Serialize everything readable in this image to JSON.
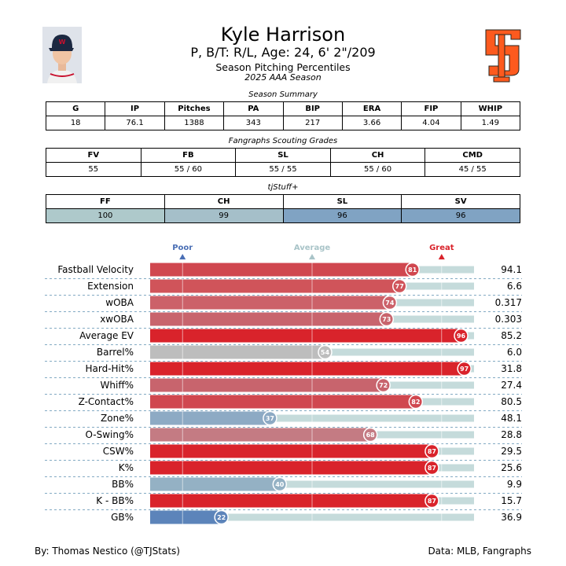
{
  "header": {
    "name": "Kyle Harrison",
    "info": "P, B/T: R/L, Age: 24, 6' 2\"/209",
    "subtitle": "Season Pitching Percentiles",
    "season": "2025 AAA Season"
  },
  "season_summary": {
    "caption": "Season Summary",
    "columns": [
      "G",
      "IP",
      "Pitches",
      "PA",
      "BIP",
      "ERA",
      "FIP",
      "WHIP"
    ],
    "values": [
      "18",
      "76.1",
      "1388",
      "343",
      "217",
      "3.66",
      "4.04",
      "1.49"
    ]
  },
  "fangraphs": {
    "caption": "Fangraphs Scouting Grades",
    "columns": [
      "FV",
      "FB",
      "SL",
      "CH",
      "CMD"
    ],
    "values": [
      "55",
      "55 / 60",
      "55 / 55",
      "55 / 60",
      "45 / 55"
    ]
  },
  "tjstuff": {
    "caption": "tjStuff+",
    "columns": [
      "FF",
      "CH",
      "SL",
      "SV"
    ],
    "values": [
      "100",
      "99",
      "96",
      "96"
    ],
    "colors": [
      "#aec9cb",
      "#a5bfc9",
      "#80a3c3",
      "#80a3c3"
    ]
  },
  "chart_data": {
    "type": "bar",
    "orientation": "horizontal",
    "xlim": [
      0,
      100
    ],
    "markers": [
      {
        "label": "Poor",
        "value": 10,
        "color": "#4a6fb5"
      },
      {
        "label": "Average",
        "value": 50,
        "color": "#a9c4c8"
      },
      {
        "label": "Great",
        "value": 90,
        "color": "#d9232b"
      }
    ],
    "categories": [
      "Fastball Velocity",
      "Extension",
      "wOBA",
      "xwOBA",
      "Average EV",
      "Barrel%",
      "Hard-Hit%",
      "Whiff%",
      "Z-Contact%",
      "Zone%",
      "O-Swing%",
      "CSW%",
      "K%",
      "BB%",
      "K - BB%",
      "GB%"
    ],
    "percentiles": [
      81,
      77,
      74,
      73,
      96,
      54,
      97,
      72,
      82,
      37,
      68,
      87,
      87,
      40,
      87,
      22
    ],
    "stat_values": [
      "94.1",
      "6.6",
      "0.317",
      "0.303",
      "85.2",
      "6.0",
      "31.8",
      "27.4",
      "80.5",
      "48.1",
      "28.8",
      "29.5",
      "25.6",
      "9.9",
      "15.7",
      "36.9"
    ],
    "colors": [
      "#d0474f",
      "#d0545a",
      "#cc6169",
      "#c8646d",
      "#d9232b",
      "#bdbdbd",
      "#d9232b",
      "#c8646d",
      "#d0474f",
      "#8daac4",
      "#c47b83",
      "#d9232b",
      "#d9232b",
      "#94b1c4",
      "#d9232b",
      "#5c84ba"
    ],
    "track_color": "#c5dbdb"
  },
  "footer": {
    "credit": "By: Thomas Nestico (@TJStats)",
    "source": "Data: MLB, Fangraphs"
  }
}
